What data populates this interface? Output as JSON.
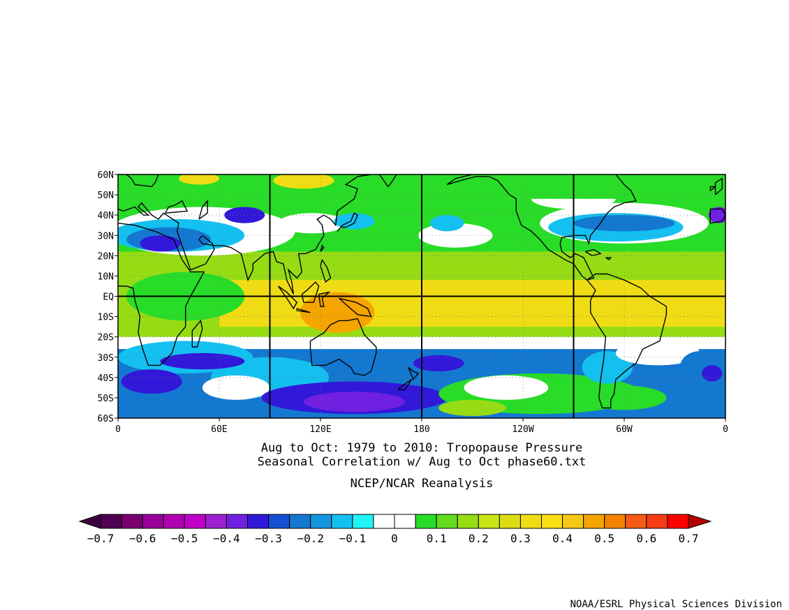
{
  "map": {
    "title_line1": "Aug to Oct: 1979 to 2010: Tropopause Pressure",
    "title_line2": "Seasonal Correlation w/ Aug to Oct phase60.txt",
    "subtitle": "NCEP/NCAR Reanalysis",
    "credit": "NOAA/ESRL Physical Sciences Division",
    "lat_ticks": [
      "60N",
      "50N",
      "40N",
      "30N",
      "20N",
      "10N",
      "EQ",
      "10S",
      "20S",
      "30S",
      "40S",
      "50S",
      "60S"
    ],
    "lon_ticks": [
      "0",
      "60E",
      "120E",
      "180",
      "120W",
      "60W",
      "0"
    ],
    "lon_range": [
      0,
      360
    ],
    "lat_range": [
      -60,
      60
    ],
    "projection": "cylindrical equidistant",
    "box_lines_lon": [
      90,
      180,
      270
    ],
    "box_lines_lat": [
      0
    ]
  },
  "colorbar": {
    "labels": [
      "-0.7",
      "-0.6",
      "-0.5",
      "-0.4",
      "-0.3",
      "-0.2",
      "-0.1",
      "0",
      "0.1",
      "0.2",
      "0.3",
      "0.4",
      "0.5",
      "0.6",
      "0.7"
    ],
    "colors": [
      "#500050",
      "#7a0070",
      "#98009a",
      "#b000b0",
      "#c000c8",
      "#9a20d0",
      "#7020e0",
      "#3218d8",
      "#1450d0",
      "#1478d0",
      "#1496e0",
      "#14c0f0",
      "#20f4f4",
      "#ffffff",
      "#ffffff",
      "#28dc28",
      "#64dc1e",
      "#96dc14",
      "#c8e614",
      "#dcdc14",
      "#f0dc14",
      "#fade14",
      "#f5c814",
      "#f5a500",
      "#f58200",
      "#f55a14",
      "#f53c14",
      "#ff0000"
    ],
    "under_color": "#3c003c",
    "over_color": "#b40000"
  },
  "field": {
    "palette": {
      "deep_blue": "#3218d8",
      "blue": "#1478d0",
      "cyan": "#14c0f0",
      "white": "#ffffff",
      "green": "#28dc28",
      "yellowgreen": "#96dc14",
      "yellow": "#f0dc14",
      "orange": "#f5a500",
      "violet": "#7020e0",
      "coast": "#000000"
    }
  }
}
